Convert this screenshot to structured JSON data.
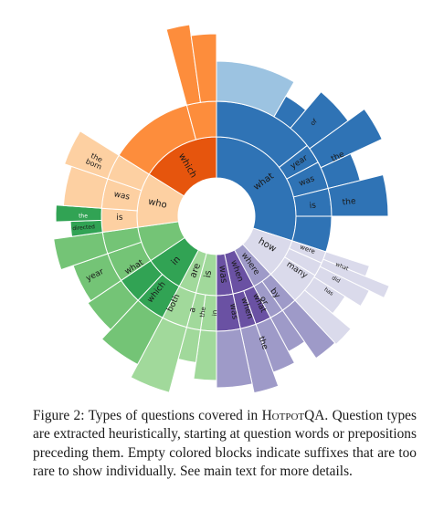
{
  "figure": {
    "colors": {
      "blue": "#2f73b5",
      "blue_light": "#9cc3e1",
      "orange": "#e6550d",
      "orange_light": "#fd8d3c",
      "orange_pale": "#fdd0a2",
      "green": "#31a354",
      "green_light": "#74c476",
      "green_pale": "#a1d99b",
      "purple": "#6a51a3",
      "purple_light": "#9e9ac8",
      "purple_pale": "#dadaeb"
    },
    "inner_labels": [
      "what",
      "which",
      "who",
      "in",
      "are",
      "is",
      "was",
      "when",
      "where",
      "how"
    ],
    "outer_labels": [
      "year",
      "was",
      "is",
      "the",
      "the",
      "born",
      "was",
      "the",
      "is",
      "directed",
      "the",
      "year",
      "what",
      "which",
      "both",
      "a",
      "the",
      "in",
      "was",
      "when",
      "or",
      "by",
      "what",
      "the",
      "many",
      "were",
      "what",
      "did",
      "has",
      "of"
    ]
  },
  "caption": {
    "prefix": "Figure 2: Types of questions covered in ",
    "dataset": "HotpotQA",
    "rest": ". Question types are extracted heuristically, starting at question words or prepositions preceding them. Empty colored blocks indicate suffixes that are too rare to show individually. See main text for more details."
  }
}
